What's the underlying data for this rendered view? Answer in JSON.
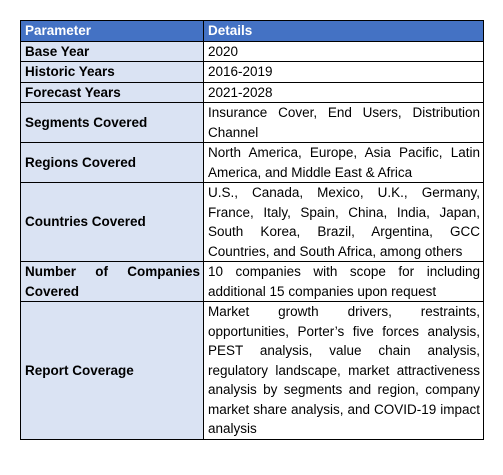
{
  "table": {
    "header": {
      "parameter": "Parameter",
      "details": "Details"
    },
    "rows": [
      {
        "parameter": "Base Year",
        "details": "2020"
      },
      {
        "parameter": "Historic Years",
        "details": "2016-2019"
      },
      {
        "parameter": "Forecast Years",
        "details": "2021-2028"
      },
      {
        "parameter": "Segments Covered",
        "details": "Insurance Cover, End Users, Distribution Channel"
      },
      {
        "parameter": "Regions Covered",
        "details": "North America, Europe, Asia Pacific, Latin America, and Middle East & Africa"
      },
      {
        "parameter": "Countries Covered",
        "details": "U.S., Canada, Mexico, U.K., Germany, France, Italy, Spain, China, India, Japan, South Korea, Brazil, Argentina, GCC Countries, and South Africa, among others"
      },
      {
        "parameter": "Number of Companies Covered",
        "details": "10 companies with scope for including additional 15 companies upon request"
      },
      {
        "parameter": "Report Coverage",
        "details": "Market growth drivers, restraints, opportunities, Porter’s five forces analysis, PEST analysis, value chain analysis, regulatory landscape, market attractiveness analysis by segments and region, company market share analysis, and COVID-19 impact analysis"
      }
    ],
    "colors": {
      "header_background": "#4472c4",
      "header_text": "#ffffff",
      "parameter_background": "#dae3f3",
      "detail_background": "#ffffff",
      "border": "#000000"
    }
  }
}
